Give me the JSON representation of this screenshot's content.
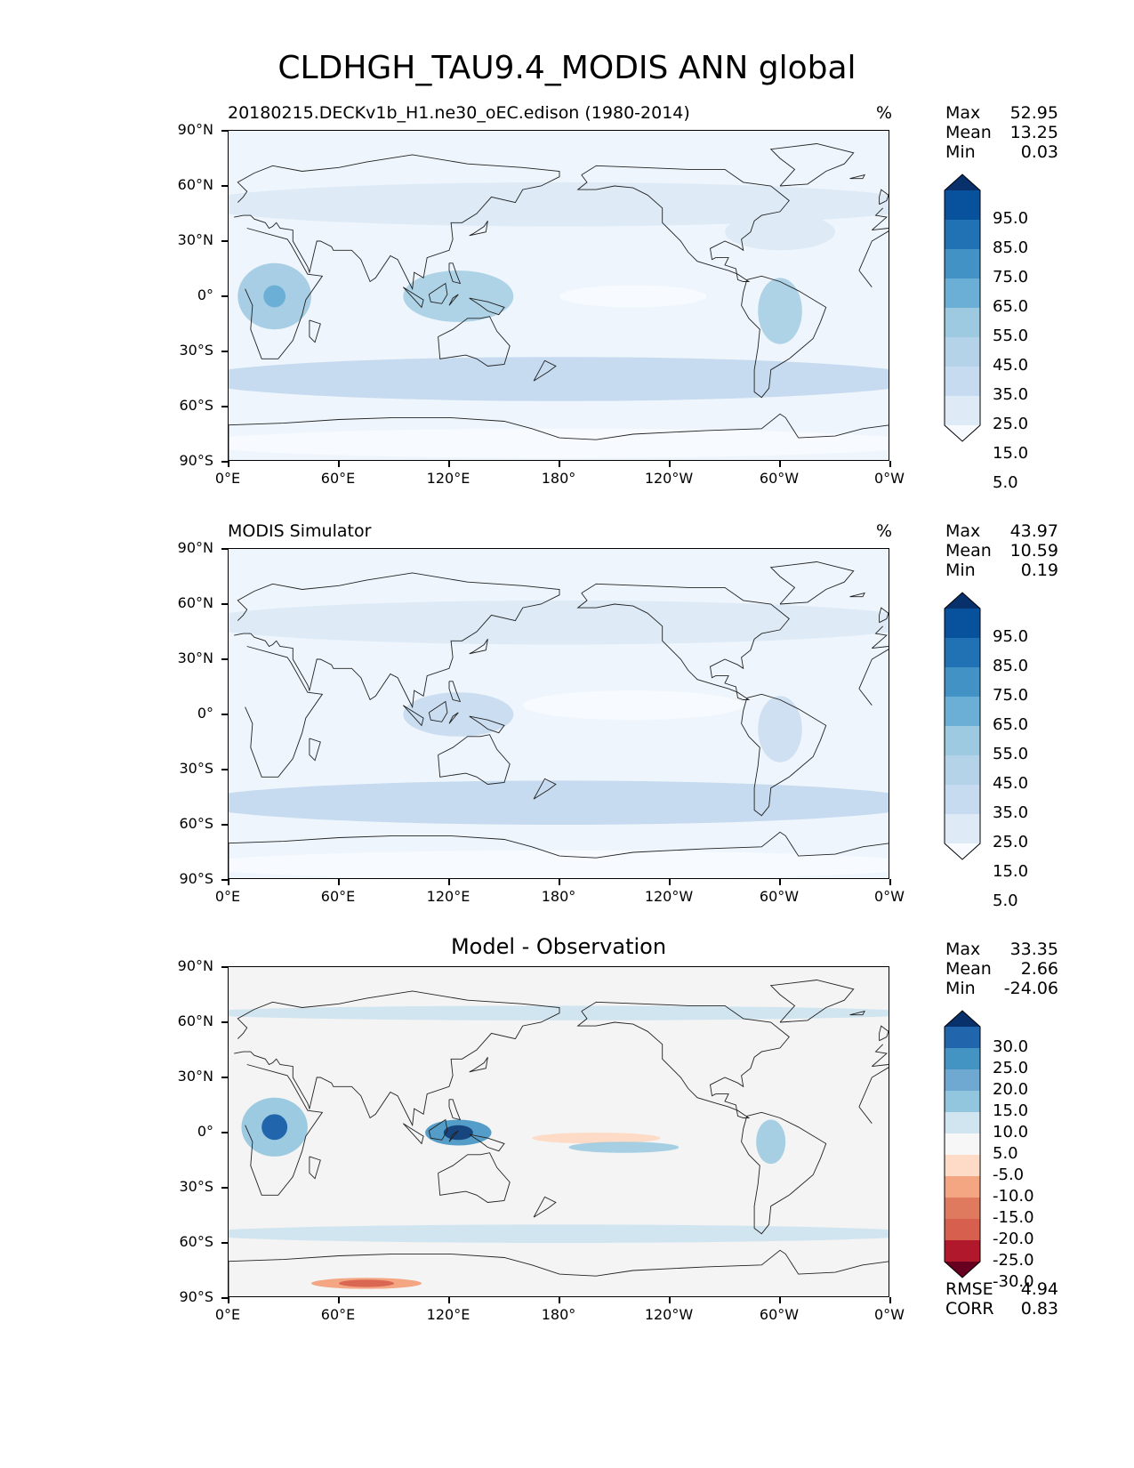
{
  "figure": {
    "title": "CLDHGH_TAU9.4_MODIS ANN global"
  },
  "axes": {
    "lat_ticks": [
      "90°N",
      "60°N",
      "30°N",
      "0°",
      "30°S",
      "60°S",
      "90°S"
    ],
    "lon_ticks": [
      "0°E",
      "60°E",
      "120°E",
      "180°",
      "120°W",
      "60°W",
      "0°W"
    ]
  },
  "panels": [
    {
      "subtitle": "20180215.DECKv1b_H1.ne30_oEC.edison (1980-2014)",
      "units": "%",
      "center_title": "",
      "stats": [
        {
          "label": "Max",
          "value": "52.95"
        },
        {
          "label": "Mean",
          "value": "13.25"
        },
        {
          "label": "Min",
          "value": "0.03"
        }
      ],
      "colorbar": {
        "labels": [
          "95.0",
          "85.0",
          "75.0",
          "65.0",
          "55.0",
          "45.0",
          "35.0",
          "25.0",
          "15.0",
          "5.0"
        ],
        "colors": [
          "#08306b",
          "#08519c",
          "#2171b5",
          "#4292c6",
          "#6baed6",
          "#9ecae1",
          "#b5d3e8",
          "#c6dbef",
          "#deebf7",
          "#f7fbff"
        ]
      },
      "extra_stats": []
    },
    {
      "subtitle": "MODIS Simulator",
      "units": "%",
      "center_title": "",
      "stats": [
        {
          "label": "Max",
          "value": "43.97"
        },
        {
          "label": "Mean",
          "value": "10.59"
        },
        {
          "label": "Min",
          "value": "0.19"
        }
      ],
      "colorbar": {
        "labels": [
          "95.0",
          "85.0",
          "75.0",
          "65.0",
          "55.0",
          "45.0",
          "35.0",
          "25.0",
          "15.0",
          "5.0"
        ],
        "colors": [
          "#08306b",
          "#08519c",
          "#2171b5",
          "#4292c6",
          "#6baed6",
          "#9ecae1",
          "#b5d3e8",
          "#c6dbef",
          "#deebf7",
          "#f7fbff"
        ]
      },
      "extra_stats": []
    },
    {
      "subtitle": "",
      "units": "",
      "center_title": "Model - Observation",
      "stats": [
        {
          "label": "Max",
          "value": "33.35"
        },
        {
          "label": "Mean",
          "value": "2.66"
        },
        {
          "label": "Min",
          "value": "-24.06"
        }
      ],
      "colorbar": {
        "labels": [
          "30.0",
          "25.0",
          "20.0",
          "15.0",
          "10.0",
          "5.0",
          "-5.0",
          "-10.0",
          "-15.0",
          "-20.0",
          "-25.0",
          "-30.0"
        ],
        "colors": [
          "#08306b",
          "#2166ac",
          "#4393c3",
          "#6fa8d0",
          "#92c5de",
          "#d1e5f0",
          "#f7f7f7",
          "#fddbc7",
          "#f4a582",
          "#e07a5f",
          "#d6604d",
          "#b2182b",
          "#67001f"
        ]
      },
      "extra_stats": [
        {
          "label": "RMSE",
          "value": "4.94"
        },
        {
          "label": "CORR",
          "value": "0.83"
        }
      ]
    }
  ]
}
